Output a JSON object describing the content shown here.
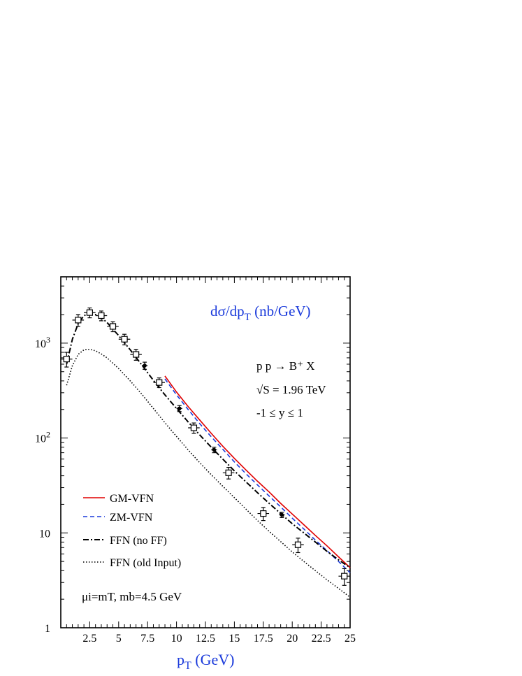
{
  "chart_data": {
    "type": "line",
    "title": "dσ/dp",
    "title_sub": "T",
    "title_units": " (nb/GeV)",
    "xlabel": "p",
    "xlabel_sub": "T",
    "xlabel_units": " (GeV)",
    "ylabel": "",
    "xlim": [
      0,
      25
    ],
    "ylim": [
      1,
      5000
    ],
    "y_scale": "log",
    "x_ticks": [
      2.5,
      5,
      7.5,
      10,
      12.5,
      15,
      17.5,
      20,
      22.5,
      25
    ],
    "x_tick_labels": [
      "2.5",
      "5",
      "7.5",
      "10",
      "12.5",
      "15",
      "17.5",
      "20",
      "22.5",
      "25"
    ],
    "y_tick_labels": [
      {
        "value": 1,
        "base": "1",
        "exp": ""
      },
      {
        "value": 10,
        "base": "10",
        "exp": ""
      },
      {
        "value": 100,
        "base": "10",
        "exp": "2"
      },
      {
        "value": 1000,
        "base": "10",
        "exp": "3"
      }
    ],
    "annotations": {
      "process": "p p → B⁺ X",
      "energy": "√S = 1.96 TeV",
      "rapidity": "-1 ≤  y ≤ 1",
      "scales": "μi=mT, mb=4.5 GeV"
    },
    "legend_position": "bottom-left",
    "series": [
      {
        "name": "GM-VFN",
        "color": "#e00000",
        "dash": "solid",
        "x": [
          9,
          10,
          11,
          12,
          13,
          14,
          15,
          16,
          17,
          18,
          19,
          20,
          21,
          22,
          23,
          24,
          25
        ],
        "y": [
          450,
          305,
          215,
          155,
          112,
          82,
          61,
          46,
          35,
          27,
          20.5,
          15.8,
          12.2,
          9.4,
          7.3,
          5.6,
          4.3
        ]
      },
      {
        "name": "ZM-VFN",
        "color": "#1a3adb",
        "dash": "dashed",
        "x": [
          9,
          10,
          11,
          12,
          13,
          14,
          15,
          16,
          17,
          18,
          19,
          20,
          21,
          22,
          23,
          24,
          25
        ],
        "y": [
          420,
          285,
          200,
          142,
          103,
          76,
          56,
          42,
          32,
          24.5,
          18.8,
          14.3,
          11,
          8.4,
          6.5,
          5,
          3.8
        ]
      },
      {
        "name": "FFN (no FF)",
        "color": "#000000",
        "dash": "dashdot",
        "x": [
          0.5,
          1,
          1.5,
          2,
          2.5,
          3,
          3.5,
          4,
          5,
          6,
          7,
          8,
          9,
          10,
          11,
          12,
          13,
          14,
          15,
          16,
          17,
          18,
          19,
          20,
          21,
          22,
          23,
          24,
          25
        ],
        "y": [
          600,
          1100,
          1600,
          1950,
          2050,
          2000,
          1850,
          1650,
          1200,
          850,
          590,
          405,
          285,
          205,
          148,
          108,
          80,
          60,
          45,
          34.5,
          26.5,
          20.5,
          16,
          12.5,
          10,
          8,
          6.4,
          5.2,
          4.3
        ]
      },
      {
        "name": "FFN (old Input)",
        "color": "#000000",
        "dash": "dotted",
        "x": [
          0.5,
          1,
          1.5,
          2,
          2.5,
          3,
          3.5,
          4,
          5,
          6,
          7,
          8,
          9,
          10,
          11,
          12,
          13,
          14,
          15,
          16,
          17,
          18,
          19,
          20,
          21,
          22,
          23,
          24,
          25
        ],
        "y": [
          360,
          580,
          760,
          850,
          860,
          830,
          770,
          700,
          540,
          400,
          290,
          205,
          145,
          104,
          75,
          55,
          41,
          31,
          23.5,
          17.8,
          13.5,
          10.4,
          8.1,
          6.3,
          5,
          4,
          3.2,
          2.6,
          2.1
        ]
      }
    ],
    "data_points": [
      {
        "x": 0.5,
        "y": 680,
        "xerr": 0.5,
        "ylo": 560,
        "yhi": 800,
        "style": "open"
      },
      {
        "x": 1.5,
        "y": 1750,
        "xerr": 0.5,
        "ylo": 1500,
        "yhi": 2000,
        "style": "open"
      },
      {
        "x": 2.5,
        "y": 2100,
        "xerr": 0.5,
        "ylo": 1850,
        "yhi": 2350,
        "style": "open"
      },
      {
        "x": 3.5,
        "y": 1950,
        "xerr": 0.5,
        "ylo": 1720,
        "yhi": 2180,
        "style": "open"
      },
      {
        "x": 4.5,
        "y": 1500,
        "xerr": 0.5,
        "ylo": 1320,
        "yhi": 1680,
        "style": "open"
      },
      {
        "x": 5.5,
        "y": 1100,
        "xerr": 0.5,
        "ylo": 960,
        "yhi": 1240,
        "style": "open"
      },
      {
        "x": 6.5,
        "y": 760,
        "xerr": 0.5,
        "ylo": 660,
        "yhi": 860,
        "style": "open"
      },
      {
        "x": 7.25,
        "y": 580,
        "xerr": 0.25,
        "ylo": 530,
        "yhi": 630,
        "style": "filled"
      },
      {
        "x": 8.5,
        "y": 385,
        "xerr": 0.5,
        "ylo": 340,
        "yhi": 430,
        "style": "open"
      },
      {
        "x": 10.25,
        "y": 205,
        "xerr": 0.25,
        "ylo": 190,
        "yhi": 220,
        "style": "filled"
      },
      {
        "x": 11.5,
        "y": 128,
        "xerr": 0.5,
        "ylo": 112,
        "yhi": 144,
        "style": "open"
      },
      {
        "x": 13.25,
        "y": 75,
        "xerr": 0.25,
        "ylo": 70,
        "yhi": 80,
        "style": "filled"
      },
      {
        "x": 14.5,
        "y": 43,
        "xerr": 0.5,
        "ylo": 37,
        "yhi": 49,
        "style": "open"
      },
      {
        "x": 17.5,
        "y": 16,
        "xerr": 0.5,
        "ylo": 13.5,
        "yhi": 18.5,
        "style": "open"
      },
      {
        "x": 19.1,
        "y": 15.5,
        "xerr": 0.25,
        "ylo": 14.5,
        "yhi": 16.5,
        "style": "filled"
      },
      {
        "x": 20.5,
        "y": 7.5,
        "xerr": 0.5,
        "ylo": 6.2,
        "yhi": 8.8,
        "style": "open"
      },
      {
        "x": 24.5,
        "y": 3.5,
        "xerr": 0.5,
        "ylo": 2.8,
        "yhi": 4.2,
        "style": "open"
      }
    ]
  }
}
